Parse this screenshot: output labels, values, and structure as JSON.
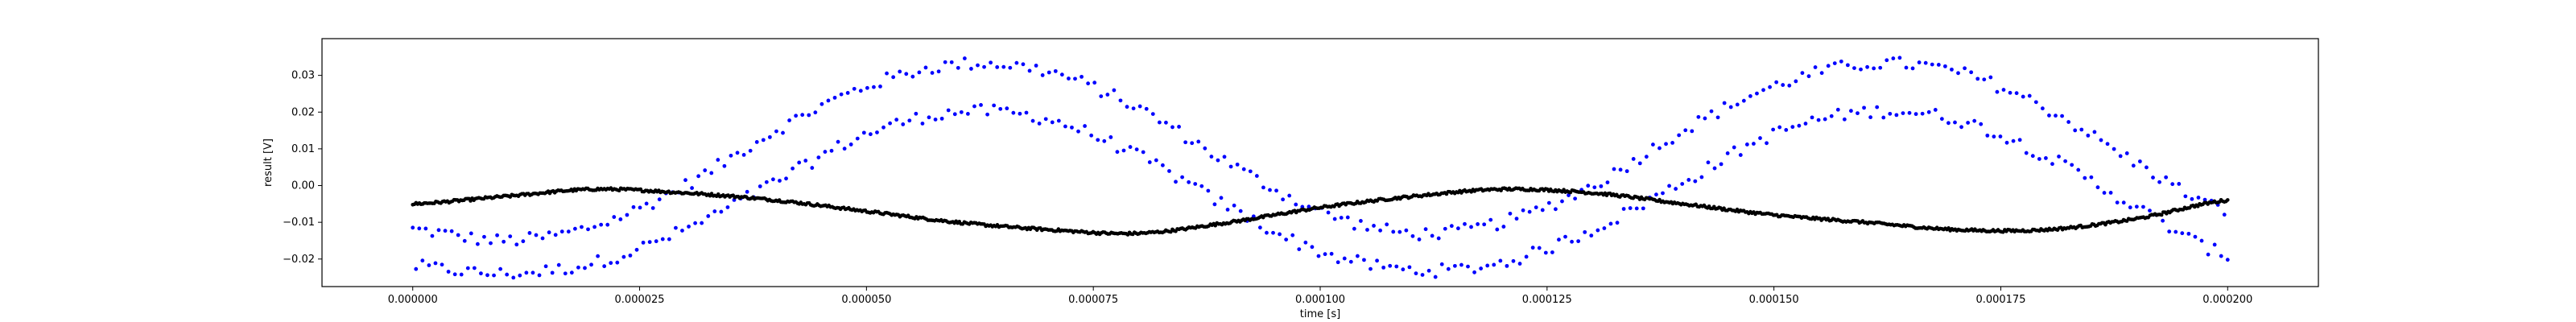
{
  "chart_data": {
    "type": "scatter",
    "title": "",
    "xlabel": "time [s]",
    "ylabel": "result [V]",
    "xlim": [
      -1e-05,
      0.00021
    ],
    "ylim": [
      -0.0275,
      0.04
    ],
    "x_ticks": [
      0,
      2.5e-05,
      5e-05,
      7.5e-05,
      0.0001,
      0.000125,
      0.00015,
      0.000175,
      0.0002
    ],
    "x_tick_labels": [
      "0.000000",
      "0.000025",
      "0.000050",
      "0.000075",
      "0.000100",
      "0.000125",
      "0.000150",
      "0.000175",
      "0.000200"
    ],
    "y_ticks": [
      -0.02,
      -0.01,
      0.0,
      0.01,
      0.02,
      0.03
    ],
    "y_tick_labels": [
      "−0.02",
      "−0.01",
      "0.00",
      "0.01",
      "0.02",
      "0.03"
    ],
    "grid": false,
    "legend": "none",
    "series": [
      {
        "color": "#0000ff",
        "marker": "dot",
        "x": [
          0.0,
          1e-05,
          2e-05,
          3e-05,
          4e-05,
          5e-05,
          6e-05,
          7e-05,
          8e-05,
          9e-05,
          0.0001,
          0.00011,
          0.00012,
          0.00013,
          0.00014,
          0.00015,
          0.00016,
          0.00017,
          0.00018,
          0.00019,
          0.0002
        ],
        "y": [
          -0.018,
          -0.02,
          -0.016,
          -0.006,
          0.008,
          0.02,
          0.026,
          0.024,
          0.014,
          0.0,
          -0.012,
          -0.019,
          -0.016,
          -0.006,
          0.008,
          0.02,
          0.026,
          0.024,
          0.014,
          0.0,
          -0.012
        ],
        "y_upper": [
          -0.012,
          -0.015,
          -0.011,
          0.0,
          0.015,
          0.027,
          0.033,
          0.031,
          0.021,
          0.006,
          -0.007,
          -0.013,
          -0.01,
          0.0,
          0.015,
          0.027,
          0.033,
          0.031,
          0.021,
          0.006,
          -0.007
        ],
        "y_lower": [
          -0.022,
          -0.024,
          -0.021,
          -0.012,
          0.001,
          0.014,
          0.02,
          0.018,
          0.008,
          -0.006,
          -0.018,
          -0.023,
          -0.021,
          -0.012,
          0.001,
          0.014,
          0.02,
          0.018,
          0.008,
          -0.006,
          -0.019
        ]
      },
      {
        "color": "#000000",
        "marker": "dot",
        "x": [
          0.0,
          1e-05,
          2e-05,
          3e-05,
          4e-05,
          5e-05,
          6e-05,
          7e-05,
          8e-05,
          9e-05,
          0.0001,
          0.00011,
          0.00012,
          0.00013,
          0.00014,
          0.00015,
          0.00016,
          0.00017,
          0.00018,
          0.00019,
          0.0002
        ],
        "y": [
          -0.005,
          -0.003,
          -0.001,
          -0.002,
          -0.004,
          -0.007,
          -0.01,
          -0.012,
          -0.013,
          -0.01,
          -0.006,
          -0.003,
          -0.001,
          -0.002,
          -0.005,
          -0.008,
          -0.01,
          -0.012,
          -0.012,
          -0.009,
          -0.004
        ]
      }
    ]
  }
}
